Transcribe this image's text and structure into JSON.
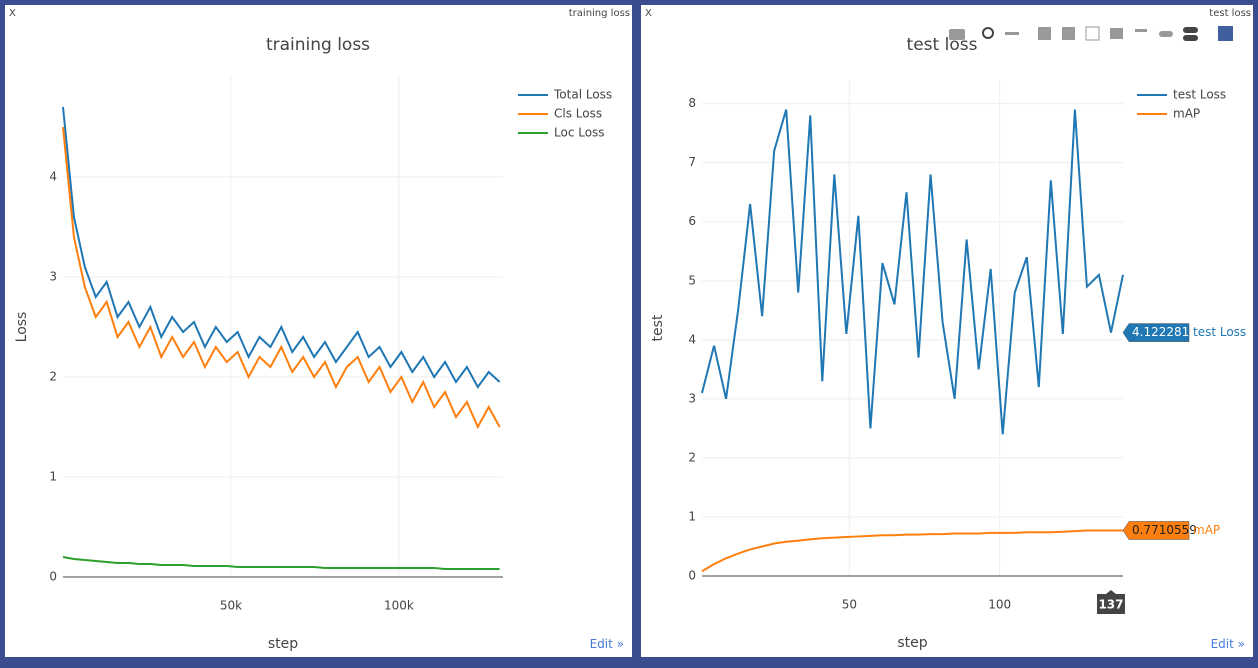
{
  "windows": [
    {
      "close": "X",
      "title": "training loss",
      "edit": "Edit »"
    },
    {
      "close": "X",
      "title": "test loss",
      "edit": "Edit »"
    }
  ],
  "chart_data": [
    {
      "type": "line",
      "title": "training loss",
      "xlabel": "step",
      "ylabel": "Loss",
      "xlim": [
        0,
        131000
      ],
      "ylim": [
        0,
        5
      ],
      "xticks": [
        {
          "value": 50000,
          "label": "50k"
        },
        {
          "value": 100000,
          "label": "100k"
        }
      ],
      "yticks": [
        0,
        1,
        2,
        3,
        4
      ],
      "grid": true,
      "legend": "top-right",
      "x": [
        0,
        3250,
        6500,
        9750,
        13000,
        16250,
        19500,
        22750,
        26000,
        29250,
        32500,
        35750,
        39000,
        42250,
        45500,
        48750,
        52000,
        55250,
        58500,
        61750,
        65000,
        68250,
        71500,
        74750,
        78000,
        81250,
        84500,
        87750,
        91000,
        94250,
        97500,
        100750,
        104000,
        107250,
        110500,
        113750,
        117000,
        120250,
        123500,
        126750,
        130000
      ],
      "series": [
        {
          "name": "Total Loss",
          "color": "#1f77b4",
          "values": [
            4.7,
            3.6,
            3.1,
            2.8,
            2.95,
            2.6,
            2.75,
            2.5,
            2.7,
            2.4,
            2.6,
            2.45,
            2.55,
            2.3,
            2.5,
            2.35,
            2.45,
            2.2,
            2.4,
            2.3,
            2.5,
            2.25,
            2.4,
            2.2,
            2.35,
            2.15,
            2.3,
            2.45,
            2.2,
            2.3,
            2.1,
            2.25,
            2.05,
            2.2,
            2.0,
            2.15,
            1.95,
            2.1,
            1.9,
            2.05,
            1.95
          ]
        },
        {
          "name": "Cls Loss",
          "color": "#ff7f0e",
          "values": [
            4.5,
            3.4,
            2.9,
            2.6,
            2.75,
            2.4,
            2.55,
            2.3,
            2.5,
            2.2,
            2.4,
            2.2,
            2.35,
            2.1,
            2.3,
            2.15,
            2.25,
            2.0,
            2.2,
            2.1,
            2.3,
            2.05,
            2.2,
            2.0,
            2.15,
            1.9,
            2.1,
            2.2,
            1.95,
            2.1,
            1.85,
            2.0,
            1.75,
            1.95,
            1.7,
            1.85,
            1.6,
            1.75,
            1.5,
            1.7,
            1.5
          ]
        },
        {
          "name": "Loc Loss",
          "color": "#2ca02c",
          "values": [
            0.2,
            0.18,
            0.17,
            0.16,
            0.15,
            0.14,
            0.14,
            0.13,
            0.13,
            0.12,
            0.12,
            0.12,
            0.11,
            0.11,
            0.11,
            0.11,
            0.1,
            0.1,
            0.1,
            0.1,
            0.1,
            0.1,
            0.1,
            0.1,
            0.09,
            0.09,
            0.09,
            0.09,
            0.09,
            0.09,
            0.09,
            0.09,
            0.09,
            0.09,
            0.09,
            0.08,
            0.08,
            0.08,
            0.08,
            0.08,
            0.08
          ]
        }
      ]
    },
    {
      "type": "line",
      "title": "test loss",
      "xlabel": "step",
      "ylabel": "test",
      "xlim": [
        1,
        141
      ],
      "ylim": [
        0,
        8.4
      ],
      "xticks": [
        50,
        100
      ],
      "yticks": [
        0,
        1,
        2,
        3,
        4,
        5,
        6,
        7,
        8
      ],
      "grid": true,
      "legend": "top-right",
      "hover_index": 34,
      "x": [
        1,
        5,
        9,
        13,
        17,
        21,
        25,
        29,
        33,
        37,
        41,
        45,
        49,
        53,
        57,
        61,
        65,
        69,
        73,
        77,
        81,
        85,
        89,
        93,
        97,
        101,
        105,
        109,
        113,
        117,
        121,
        125,
        129,
        133,
        137,
        141
      ],
      "series": [
        {
          "name": "test Loss",
          "color": "#1f77b4",
          "values": [
            3.1,
            3.9,
            3.0,
            4.5,
            6.3,
            4.4,
            7.2,
            7.9,
            4.8,
            7.8,
            3.3,
            6.8,
            4.1,
            6.1,
            2.5,
            5.3,
            4.6,
            6.5,
            3.7,
            6.8,
            4.3,
            3.0,
            5.7,
            3.5,
            5.2,
            2.4,
            4.8,
            5.4,
            3.2,
            6.7,
            4.1,
            7.9,
            4.9,
            5.1,
            4.122281,
            5.1
          ]
        },
        {
          "name": "mAP",
          "color": "#ff7f0e",
          "values": [
            0.08,
            0.2,
            0.3,
            0.38,
            0.45,
            0.5,
            0.55,
            0.58,
            0.6,
            0.62,
            0.64,
            0.65,
            0.66,
            0.67,
            0.68,
            0.69,
            0.69,
            0.7,
            0.7,
            0.71,
            0.71,
            0.72,
            0.72,
            0.72,
            0.73,
            0.73,
            0.73,
            0.74,
            0.74,
            0.74,
            0.75,
            0.76,
            0.77,
            0.77,
            0.7710559,
            0.77
          ]
        }
      ]
    }
  ]
}
